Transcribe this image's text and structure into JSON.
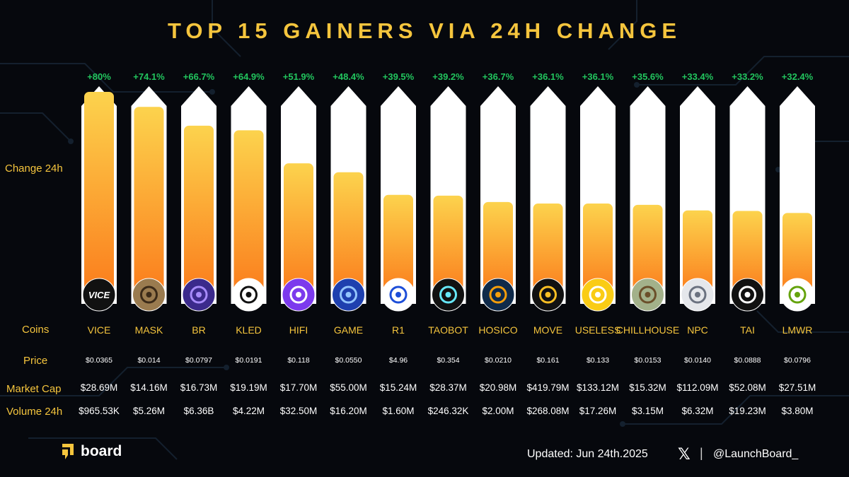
{
  "title": "TOP 15 GAINERS VIA 24H CHANGE",
  "row_labels": {
    "change": "Change 24h",
    "coins": "Coins",
    "price": "Price",
    "market_cap": "Market Cap",
    "volume": "Volume 24h"
  },
  "footer": {
    "brand": "board",
    "updated": "Updated: Jun 24th.2025",
    "x_icon": "𝕏",
    "separator": "|",
    "handle": "@LaunchBoard_"
  },
  "colors": {
    "title": "#f5c53d",
    "change_text": "#22c55e",
    "bar_top": "#fcd34d",
    "bar_bottom": "#fb7c1c",
    "track": "#ffffff"
  },
  "chart_data": {
    "type": "bar",
    "ylim": [
      0,
      100
    ],
    "categories": [
      "VICE",
      "MASK",
      "BR",
      "KLED",
      "HIFI",
      "GAME",
      "R1",
      "TAOBOT",
      "HOSICO",
      "MOVE",
      "USELESS",
      "CHILLHOUSE",
      "NPC",
      "TAI",
      "LMWR"
    ],
    "values": [
      80,
      74.1,
      66.7,
      64.9,
      51.9,
      48.4,
      39.5,
      39.2,
      36.7,
      36.1,
      36.1,
      35.6,
      33.4,
      33.2,
      32.4
    ],
    "change_labels": [
      "+80%",
      "+74.1%",
      "+66.7%",
      "+64.9%",
      "+51.9%",
      "+48.4%",
      "+39.5%",
      "+39.2%",
      "+36.7%",
      "+36.1%",
      "+36.1%",
      "+35.6%",
      "+33.4%",
      "+33.2%",
      "+32.4%"
    ],
    "prices": [
      "$0.0365",
      "$0.014",
      "$0.0797",
      "$0.0191",
      "$0.118",
      "$0.0550",
      "$4.96",
      "$0.354",
      "$0.0210",
      "$0.161",
      "$0.133",
      "$0.0153",
      "$0.0140",
      "$0.0888",
      "$0.0796"
    ],
    "market_caps": [
      "$28.69M",
      "$14.16M",
      "$16.73M",
      "$19.19M",
      "$17.70M",
      "$55.00M",
      "$15.24M",
      "$28.37M",
      "$20.98M",
      "$419.79M",
      "$133.12M",
      "$15.32M",
      "$112.09M",
      "$52.08M",
      "$27.51M"
    ],
    "volumes": [
      "$965.53K",
      "$5.26M",
      "$6.36B",
      "$4.22M",
      "$32.50M",
      "$16.20M",
      "$1.60M",
      "$246.32K",
      "$2.00M",
      "$268.08M",
      "$17.26M",
      "$3.15M",
      "$6.32M",
      "$19.23M",
      "$3.80M"
    ],
    "icons": [
      {
        "name": "vice-icon",
        "text": "VICE",
        "bg": "#111111",
        "fg": "#ffffff"
      },
      {
        "name": "mask-icon",
        "text": "",
        "bg": "#9a7b4f",
        "fg": "#3b2a18"
      },
      {
        "name": "br-icon",
        "text": "",
        "bg": "#3b2a8c",
        "fg": "#a78bfa"
      },
      {
        "name": "kled-icon",
        "text": "",
        "bg": "#ffffff",
        "fg": "#111111"
      },
      {
        "name": "hifi-icon",
        "text": "",
        "bg": "#7c3aed",
        "fg": "#ffffff"
      },
      {
        "name": "game-icon",
        "text": "",
        "bg": "#1e40af",
        "fg": "#93c5fd"
      },
      {
        "name": "r1-icon",
        "text": "",
        "bg": "#ffffff",
        "fg": "#1d4ed8"
      },
      {
        "name": "taobot-icon",
        "text": "",
        "bg": "#111111",
        "fg": "#67e8f9"
      },
      {
        "name": "hosico-icon",
        "text": "",
        "bg": "#0f2a4a",
        "fg": "#f59e0b"
      },
      {
        "name": "move-icon",
        "text": "",
        "bg": "#111111",
        "fg": "#fbbf24"
      },
      {
        "name": "useless-icon",
        "text": "",
        "bg": "#facc15",
        "fg": "#ffffff"
      },
      {
        "name": "chillhouse-icon",
        "text": "",
        "bg": "#a3b18a",
        "fg": "#6b4f2a"
      },
      {
        "name": "npc-icon",
        "text": "",
        "bg": "#e5e7eb",
        "fg": "#6b7280"
      },
      {
        "name": "tai-icon",
        "text": "",
        "bg": "#111111",
        "fg": "#ffffff"
      },
      {
        "name": "lmwr-icon",
        "text": "",
        "bg": "#ffffff",
        "fg": "#65a30d"
      }
    ]
  }
}
